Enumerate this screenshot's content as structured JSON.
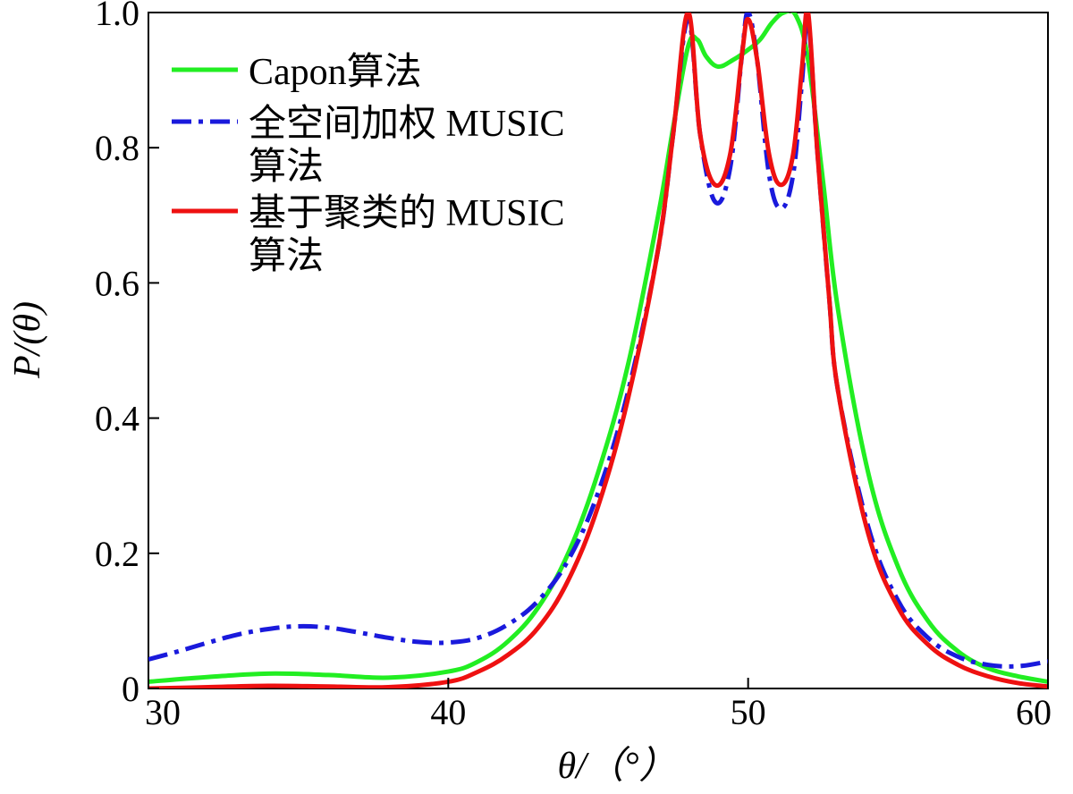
{
  "chart_data": {
    "type": "line",
    "title": "",
    "xlabel": "θ/（°）",
    "ylabel": "P/(θ)",
    "xlim": [
      30,
      60
    ],
    "ylim": [
      0,
      1.0
    ],
    "xticks": [
      30,
      40,
      50,
      60
    ],
    "yticks": [
      0,
      0.2,
      0.4,
      0.6,
      0.8,
      1.0
    ],
    "xtick_labels": [
      "30",
      "40",
      "50",
      "60"
    ],
    "ytick_labels": [
      "0",
      "0.2",
      "0.4",
      "0.6",
      "0.8",
      "1.0"
    ],
    "grid": false,
    "legend_position": "top-left",
    "series": [
      {
        "name": "Capon算法",
        "legend_lines": [
          "Capon算法"
        ],
        "color": "#22ee22",
        "style": "solid",
        "x": [
          30,
          32,
          34,
          36,
          38,
          40,
          41,
          42,
          43,
          44,
          45,
          46,
          47,
          47.5,
          48,
          48.3,
          48.6,
          49,
          49.5,
          50,
          50.4,
          50.8,
          51.2,
          51.6,
          52,
          52.5,
          53,
          54,
          55,
          56,
          57,
          58,
          59,
          60
        ],
        "values": [
          0.01,
          0.017,
          0.022,
          0.02,
          0.016,
          0.025,
          0.04,
          0.07,
          0.12,
          0.2,
          0.32,
          0.48,
          0.7,
          0.83,
          0.95,
          0.96,
          0.935,
          0.92,
          0.93,
          0.945,
          0.96,
          0.985,
          1.0,
          0.995,
          0.93,
          0.75,
          0.56,
          0.32,
          0.18,
          0.1,
          0.055,
          0.03,
          0.018,
          0.01
        ]
      },
      {
        "name": "全空间加权 MUSIC 算法",
        "legend_lines": [
          "全空间加权 MUSIC",
          "算法"
        ],
        "color": "#1a1adc",
        "style": "dashdot",
        "x": [
          30,
          31,
          32,
          33,
          34,
          35,
          36,
          37,
          38,
          39,
          40,
          41,
          42,
          43,
          44,
          45,
          46,
          47,
          47.5,
          48,
          48.4,
          48.9,
          49.4,
          49.8,
          50,
          50.3,
          50.7,
          51.1,
          51.5,
          51.8,
          52,
          52.3,
          52.7,
          53,
          54,
          55,
          56,
          57,
          58,
          59,
          60
        ],
        "values": [
          0.043,
          0.055,
          0.068,
          0.08,
          0.088,
          0.092,
          0.09,
          0.083,
          0.075,
          0.069,
          0.068,
          0.075,
          0.095,
          0.13,
          0.19,
          0.29,
          0.44,
          0.65,
          0.82,
          0.99,
          0.82,
          0.72,
          0.77,
          0.94,
          1.0,
          0.93,
          0.76,
          0.71,
          0.76,
          0.9,
          0.99,
          0.8,
          0.58,
          0.44,
          0.24,
          0.13,
          0.075,
          0.047,
          0.035,
          0.033,
          0.04
        ]
      },
      {
        "name": "基于聚类的 MUSIC 算法",
        "legend_lines": [
          "基于聚类的 MUSIC",
          "算法"
        ],
        "color": "#ee1111",
        "style": "solid",
        "x": [
          30,
          32,
          34,
          36,
          38,
          40,
          41,
          42,
          43,
          44,
          45,
          46,
          47,
          47.5,
          48,
          48.4,
          48.9,
          49.4,
          49.8,
          50,
          50.3,
          50.7,
          51.1,
          51.5,
          51.8,
          52,
          52.3,
          52.7,
          53,
          54,
          55,
          56,
          57,
          58,
          59,
          60
        ],
        "values": [
          0.0,
          0.002,
          0.004,
          0.003,
          0.002,
          0.01,
          0.025,
          0.05,
          0.09,
          0.16,
          0.27,
          0.43,
          0.65,
          0.82,
          1.0,
          0.82,
          0.745,
          0.79,
          0.94,
          0.99,
          0.93,
          0.79,
          0.745,
          0.79,
          0.92,
          1.0,
          0.8,
          0.58,
          0.44,
          0.23,
          0.12,
          0.065,
          0.035,
          0.018,
          0.008,
          0.003
        ]
      }
    ]
  }
}
